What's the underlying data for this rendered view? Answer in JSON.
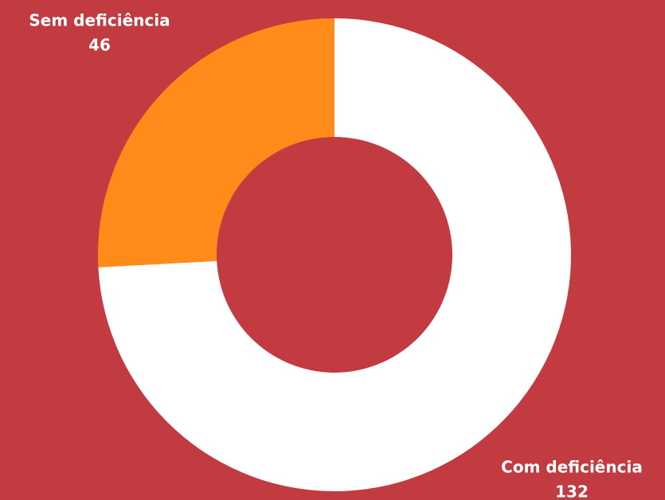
{
  "chart_data": {
    "type": "pie",
    "categories": [
      "Com deficiência",
      "Sem deficiência"
    ],
    "values": [
      132,
      46
    ],
    "colors": [
      "#ffffff",
      "#ff8c1a"
    ]
  }
}
